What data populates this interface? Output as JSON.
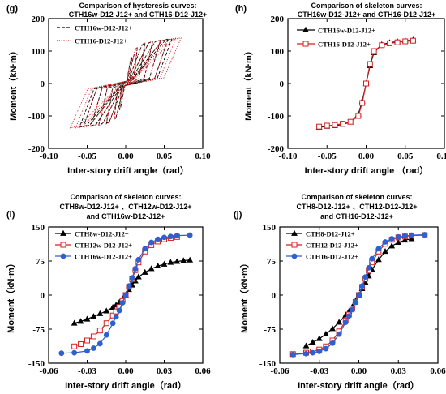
{
  "chart_data": [
    {
      "panel_label": "(g)",
      "type": "line",
      "title_lines": [
        "Comparison of hysteresis curves:",
        "CTH16w-D12-J12+ and CTH16-D12-J12+"
      ],
      "xlabel": "Inter-story drift angle（rad）",
      "ylabel": "Moment（kN·m）",
      "xlim": [
        -0.1,
        0.1
      ],
      "ylim": [
        -200,
        200
      ],
      "xticks": [
        "-0.10",
        "-0.05",
        "0.00",
        "0.05",
        "0.10"
      ],
      "yticks": [
        "-200",
        "-100",
        "0",
        "100",
        "200"
      ],
      "xtick_values": [
        -0.1,
        -0.05,
        0,
        0.05,
        0.1
      ],
      "ytick_values": [
        -200,
        -100,
        0,
        100,
        200
      ],
      "legend_position": "top-left",
      "series": [
        {
          "name": "CTH16w-D12-J12+",
          "color": "#000000",
          "style": "dashed",
          "marker": "none",
          "loop_amplitudes": [
            0.008,
            0.015,
            0.025,
            0.035,
            0.045,
            0.055,
            0.06
          ],
          "x": [
            -0.06,
            -0.05,
            -0.04,
            -0.03,
            -0.02,
            -0.01,
            0.0,
            0.01,
            0.02,
            0.03,
            0.04,
            0.05,
            0.06
          ],
          "y": [
            -135,
            -132,
            -129,
            -126,
            -120,
            -100,
            0,
            100,
            120,
            128,
            132,
            136,
            138
          ]
        },
        {
          "name": "CTH16-D12-J12+",
          "color": "#d42020",
          "style": "dotted",
          "marker": "none",
          "loop_amplitudes": [
            0.008,
            0.015,
            0.025,
            0.035,
            0.045,
            0.055,
            0.065,
            0.072
          ],
          "x": [
            -0.06,
            -0.05,
            -0.04,
            -0.03,
            -0.02,
            -0.01,
            0.0,
            0.01,
            0.02,
            0.03,
            0.04,
            0.05,
            0.06,
            0.07
          ],
          "y": [
            -137,
            -134,
            -131,
            -128,
            -121,
            -102,
            0,
            102,
            122,
            129,
            133,
            136,
            139,
            141
          ]
        }
      ]
    },
    {
      "panel_label": "(h)",
      "type": "line",
      "title_lines": [
        "Comparison of skeleton curves:",
        "CTH16w-D12-J12+ and CTH16-D12-J12+"
      ],
      "xlabel": "Inter-story drift angle （rad）",
      "ylabel": "Moment（kN·m）",
      "xlim": [
        -0.1,
        0.1
      ],
      "ylim": [
        -200,
        200
      ],
      "xticks": [
        "-0.10",
        "-0.05",
        "0.00",
        "0.05",
        "0.10"
      ],
      "yticks": [
        "-200",
        "-100",
        "0",
        "100",
        "200"
      ],
      "xtick_values": [
        -0.1,
        -0.05,
        0,
        0.05,
        0.1
      ],
      "ytick_values": [
        -200,
        -100,
        0,
        100,
        200
      ],
      "legend_position": "top-left",
      "series": [
        {
          "name": "CTH16w-D12-J12+",
          "color": "#000000",
          "marker": "triangle",
          "x": [
            -0.06,
            -0.05,
            -0.04,
            -0.03,
            -0.02,
            -0.01,
            -0.005,
            0.0,
            0.005,
            0.01,
            0.02,
            0.03,
            0.04,
            0.05,
            0.06
          ],
          "y": [
            -135,
            -132,
            -130,
            -126,
            -119,
            -95,
            -55,
            0,
            55,
            95,
            120,
            126,
            129,
            132,
            134
          ]
        },
        {
          "name": "CTH16-D12-J12+",
          "color": "#d42020",
          "marker": "square",
          "x": [
            -0.06,
            -0.05,
            -0.04,
            -0.03,
            -0.02,
            -0.01,
            -0.005,
            0.0,
            0.005,
            0.01,
            0.02,
            0.03,
            0.04,
            0.05,
            0.06
          ],
          "y": [
            -133,
            -130,
            -128,
            -124,
            -118,
            -100,
            -60,
            0,
            60,
            100,
            118,
            124,
            127,
            130,
            132
          ]
        }
      ]
    },
    {
      "panel_label": "(i)",
      "type": "line",
      "title_lines": [
        "Comparison of skeleton curves:",
        "CTH8w-D12-J12+ 、CTH12w-D12-J12+",
        "and CTH16w-D12-J12+"
      ],
      "xlabel": "Inter-story drift angle（rad）",
      "ylabel": "Moment（kN·m）",
      "xlim": [
        -0.06,
        0.06
      ],
      "ylim": [
        -150,
        150
      ],
      "xticks": [
        "-0.06",
        "-0.03",
        "0.00",
        "0.03",
        "0.06"
      ],
      "yticks": [
        "-150",
        "-75",
        "0",
        "75",
        "150"
      ],
      "xtick_values": [
        -0.06,
        -0.03,
        0,
        0.03,
        0.06
      ],
      "ytick_values": [
        -150,
        -75,
        0,
        75,
        150
      ],
      "legend_position": "top-left",
      "series": [
        {
          "name": "CTH8w-D12-J12+",
          "color": "#000000",
          "marker": "triangle",
          "x": [
            -0.04,
            -0.035,
            -0.03,
            -0.025,
            -0.02,
            -0.015,
            -0.01,
            -0.0075,
            -0.005,
            -0.0025,
            0.0,
            0.0025,
            0.005,
            0.0075,
            0.01,
            0.015,
            0.02,
            0.025,
            0.03,
            0.035,
            0.04,
            0.045,
            0.05
          ],
          "y": [
            -62,
            -58,
            -53,
            -47,
            -41,
            -35,
            -27,
            -22,
            -16,
            -8,
            0,
            12,
            22,
            31,
            40,
            50,
            58,
            64,
            68,
            72,
            74,
            76,
            77
          ]
        },
        {
          "name": "CTH12w-D12-J12+",
          "color": "#d42020",
          "marker": "square",
          "x": [
            -0.04,
            -0.035,
            -0.03,
            -0.025,
            -0.02,
            -0.015,
            -0.01,
            -0.0075,
            -0.005,
            -0.0025,
            0.0,
            0.0025,
            0.005,
            0.0075,
            0.01,
            0.015,
            0.02,
            0.025,
            0.03,
            0.035,
            0.04
          ],
          "y": [
            -113,
            -108,
            -100,
            -91,
            -78,
            -62,
            -45,
            -36,
            -26,
            -13,
            0,
            18,
            35,
            55,
            72,
            96,
            110,
            118,
            123,
            126,
            128
          ]
        },
        {
          "name": "CTH16w-D12-J12+",
          "color": "#2f5fd0",
          "marker": "circle",
          "x": [
            -0.05,
            -0.04,
            -0.03,
            -0.025,
            -0.02,
            -0.015,
            -0.01,
            -0.0075,
            -0.005,
            -0.0025,
            0.0,
            0.0025,
            0.005,
            0.0075,
            0.01,
            0.015,
            0.02,
            0.025,
            0.03,
            0.035,
            0.04,
            0.05
          ],
          "y": [
            -128,
            -127,
            -123,
            -117,
            -107,
            -88,
            -62,
            -48,
            -34,
            -17,
            0,
            20,
            38,
            58,
            78,
            102,
            116,
            123,
            127,
            129,
            131,
            132
          ]
        }
      ]
    },
    {
      "panel_label": "(j)",
      "type": "line",
      "title_lines": [
        "Comparison of skeleton curves:",
        "CTH8-D12-J12+ 、CTH12-D12-J12+",
        "and CTH16-D12-J12+"
      ],
      "xlabel": "Inter-story drift angle（rad）",
      "ylabel": "Moment（kN·m）",
      "xlim": [
        -0.06,
        0.06
      ],
      "ylim": [
        -150,
        150
      ],
      "xticks": [
        "-0.06",
        "-0.03",
        "0.00",
        "0.03",
        "0.06"
      ],
      "yticks": [
        "-150",
        "-75",
        "0",
        "75",
        "150"
      ],
      "xtick_values": [
        -0.06,
        -0.03,
        0,
        0.03,
        0.06
      ],
      "ytick_values": [
        -150,
        -75,
        0,
        75,
        150
      ],
      "legend_position": "top-left",
      "series": [
        {
          "name": "CTH8-D12-J12+",
          "color": "#000000",
          "marker": "triangle",
          "x": [
            -0.04,
            -0.035,
            -0.03,
            -0.025,
            -0.02,
            -0.015,
            -0.01,
            -0.0075,
            -0.005,
            -0.0025,
            0.0,
            0.0025,
            0.005,
            0.0075,
            0.01,
            0.015,
            0.02,
            0.025,
            0.03,
            0.035,
            0.04
          ],
          "y": [
            -112,
            -104,
            -96,
            -86,
            -74,
            -60,
            -44,
            -36,
            -26,
            -13,
            0,
            14,
            28,
            42,
            56,
            78,
            96,
            108,
            116,
            121,
            124
          ]
        },
        {
          "name": "CTH12-D12-J12+",
          "color": "#d42020",
          "marker": "square",
          "x": [
            -0.05,
            -0.04,
            -0.035,
            -0.03,
            -0.025,
            -0.02,
            -0.015,
            -0.01,
            -0.0075,
            -0.005,
            -0.0025,
            0.0,
            0.0025,
            0.005,
            0.0075,
            0.01,
            0.015,
            0.02,
            0.025,
            0.03,
            0.035,
            0.04,
            0.05
          ],
          "y": [
            -130,
            -127,
            -124,
            -120,
            -113,
            -100,
            -80,
            -56,
            -43,
            -30,
            -15,
            0,
            18,
            36,
            54,
            72,
            96,
            113,
            122,
            127,
            129,
            131,
            132
          ]
        },
        {
          "name": "CTH16-D12-J12+",
          "color": "#2f5fd0",
          "marker": "circle",
          "x": [
            -0.05,
            -0.04,
            -0.035,
            -0.03,
            -0.025,
            -0.02,
            -0.015,
            -0.01,
            -0.0075,
            -0.005,
            -0.0025,
            0.0,
            0.0025,
            0.005,
            0.0075,
            0.01,
            0.015,
            0.02,
            0.025,
            0.03,
            0.035,
            0.04,
            0.05
          ],
          "y": [
            -131,
            -129,
            -127,
            -124,
            -118,
            -106,
            -86,
            -60,
            -46,
            -32,
            -16,
            0,
            20,
            40,
            60,
            80,
            102,
            117,
            124,
            128,
            130,
            132,
            133
          ]
        }
      ]
    }
  ]
}
